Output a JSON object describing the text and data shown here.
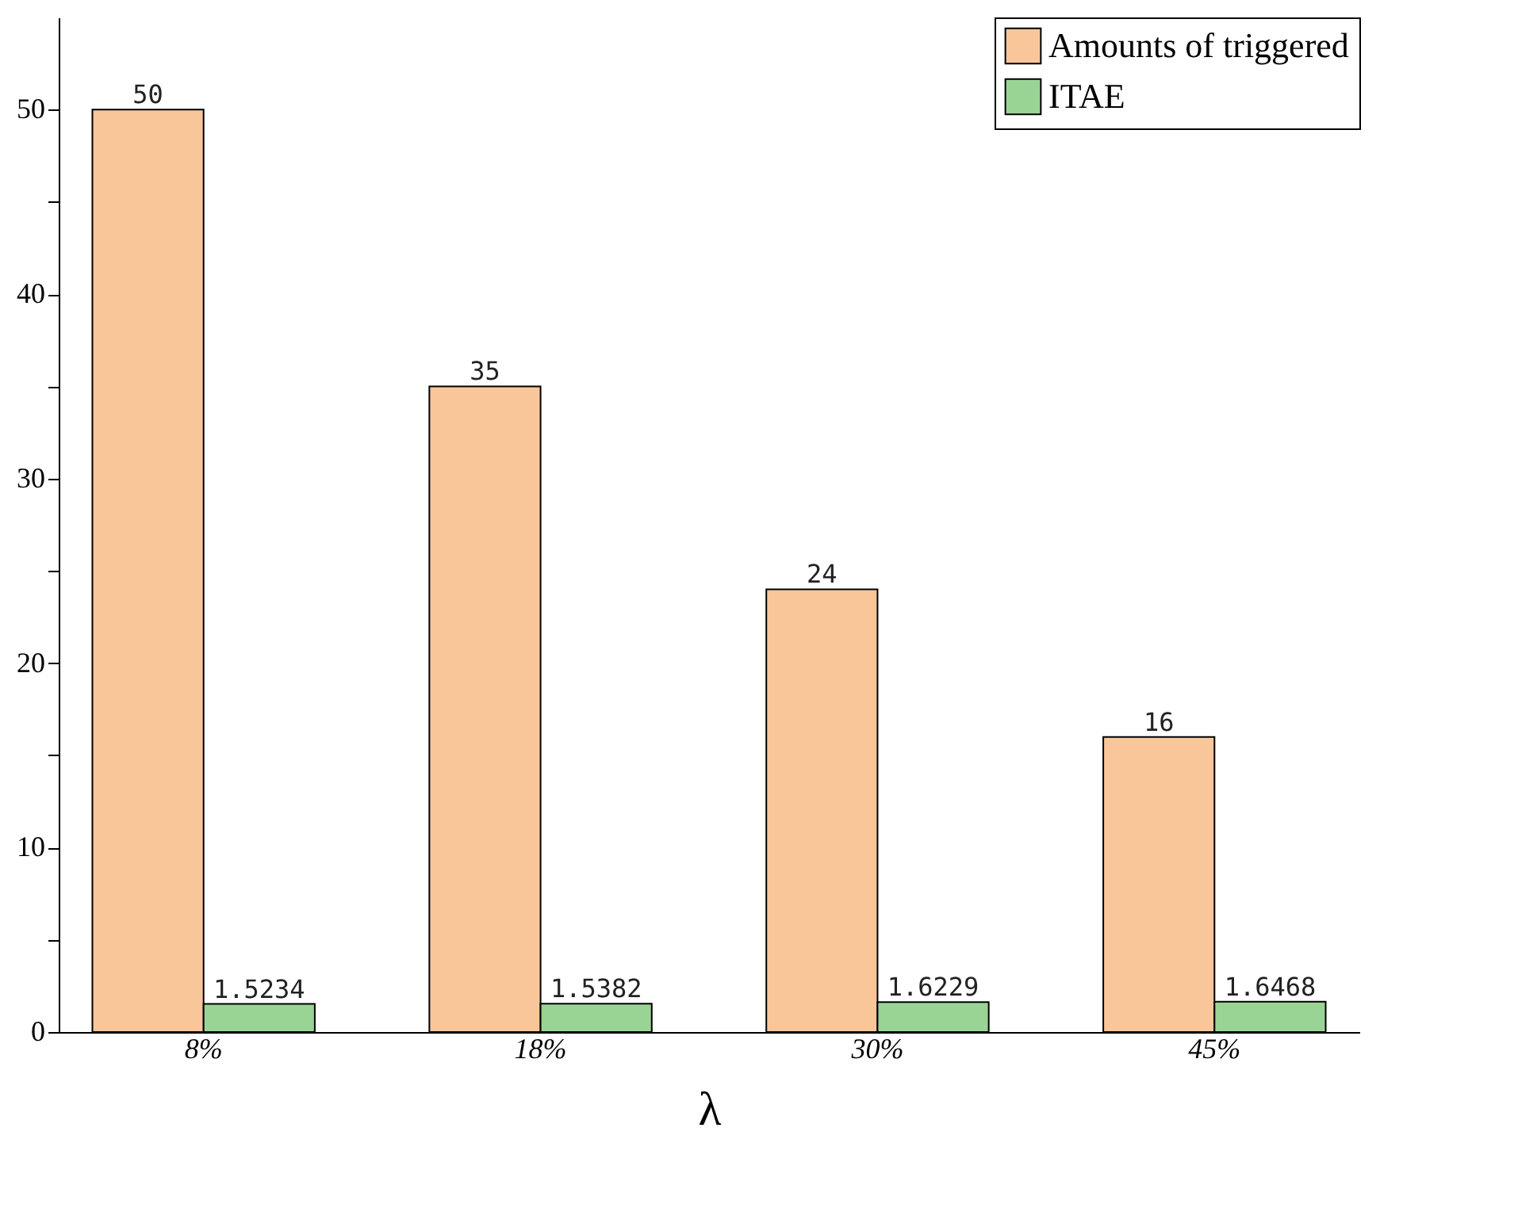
{
  "chart_data": {
    "type": "bar",
    "xlabel": "λ",
    "categories": [
      "8%",
      "18%",
      "30%",
      "45%"
    ],
    "series": [
      {
        "name": "Amounts of triggered",
        "color": "#f9c69a",
        "values": [
          50,
          35,
          24,
          16
        ]
      },
      {
        "name": "ITAE",
        "color": "#9ad495",
        "values": [
          1.5234,
          1.5382,
          1.6229,
          1.6468
        ]
      }
    ],
    "ylim": [
      0,
      55
    ],
    "yticks": [
      0,
      {
        "value": 5,
        "label": null
      },
      10,
      {
        "value": 15,
        "label": null
      },
      20,
      {
        "value": 25,
        "label": null
      },
      30,
      {
        "value": 35,
        "label": null
      },
      40,
      {
        "value": 45,
        "label": null
      },
      50
    ],
    "data_labels": true,
    "grid": false,
    "legend": "top right"
  }
}
